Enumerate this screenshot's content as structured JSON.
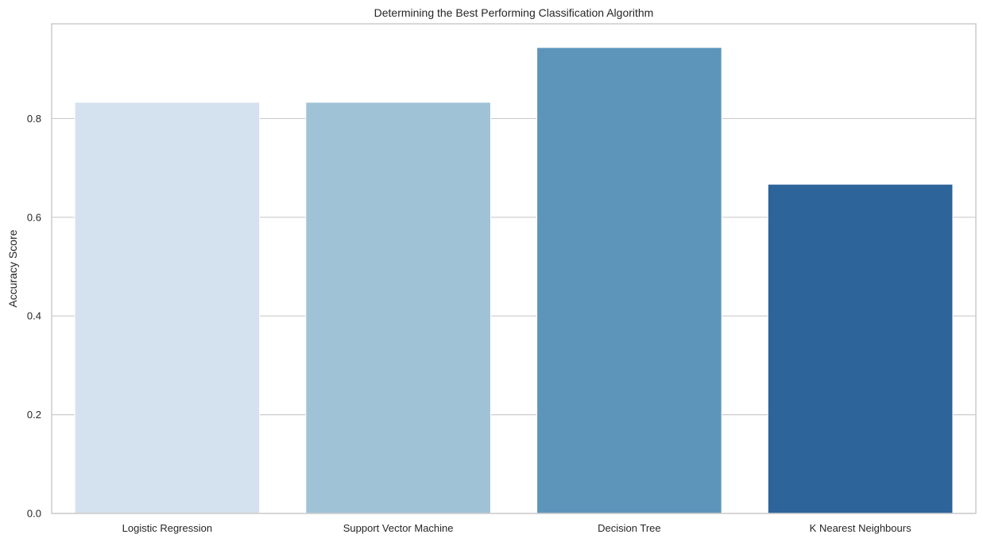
{
  "chart_data": {
    "type": "bar",
    "title": "Determining the Best Performing Classification Algorithm",
    "xlabel": "",
    "ylabel": "Accuracy Score",
    "categories": [
      "Logistic Regression",
      "Support Vector Machine",
      "Decision Tree",
      "K Nearest Neighbours"
    ],
    "values": [
      0.833,
      0.833,
      0.944,
      0.667
    ],
    "colors": [
      "#d4e2f0",
      "#9fc2d6",
      "#5d95ba",
      "#2d649a"
    ],
    "ylim": [
      0,
      0.992
    ],
    "yticks": [
      0.0,
      0.2,
      0.4,
      0.6,
      0.8
    ],
    "ytick_labels": [
      "0.0",
      "0.2",
      "0.4",
      "0.6",
      "0.8"
    ],
    "grid": true,
    "grid_axis": "y",
    "legend": false
  }
}
